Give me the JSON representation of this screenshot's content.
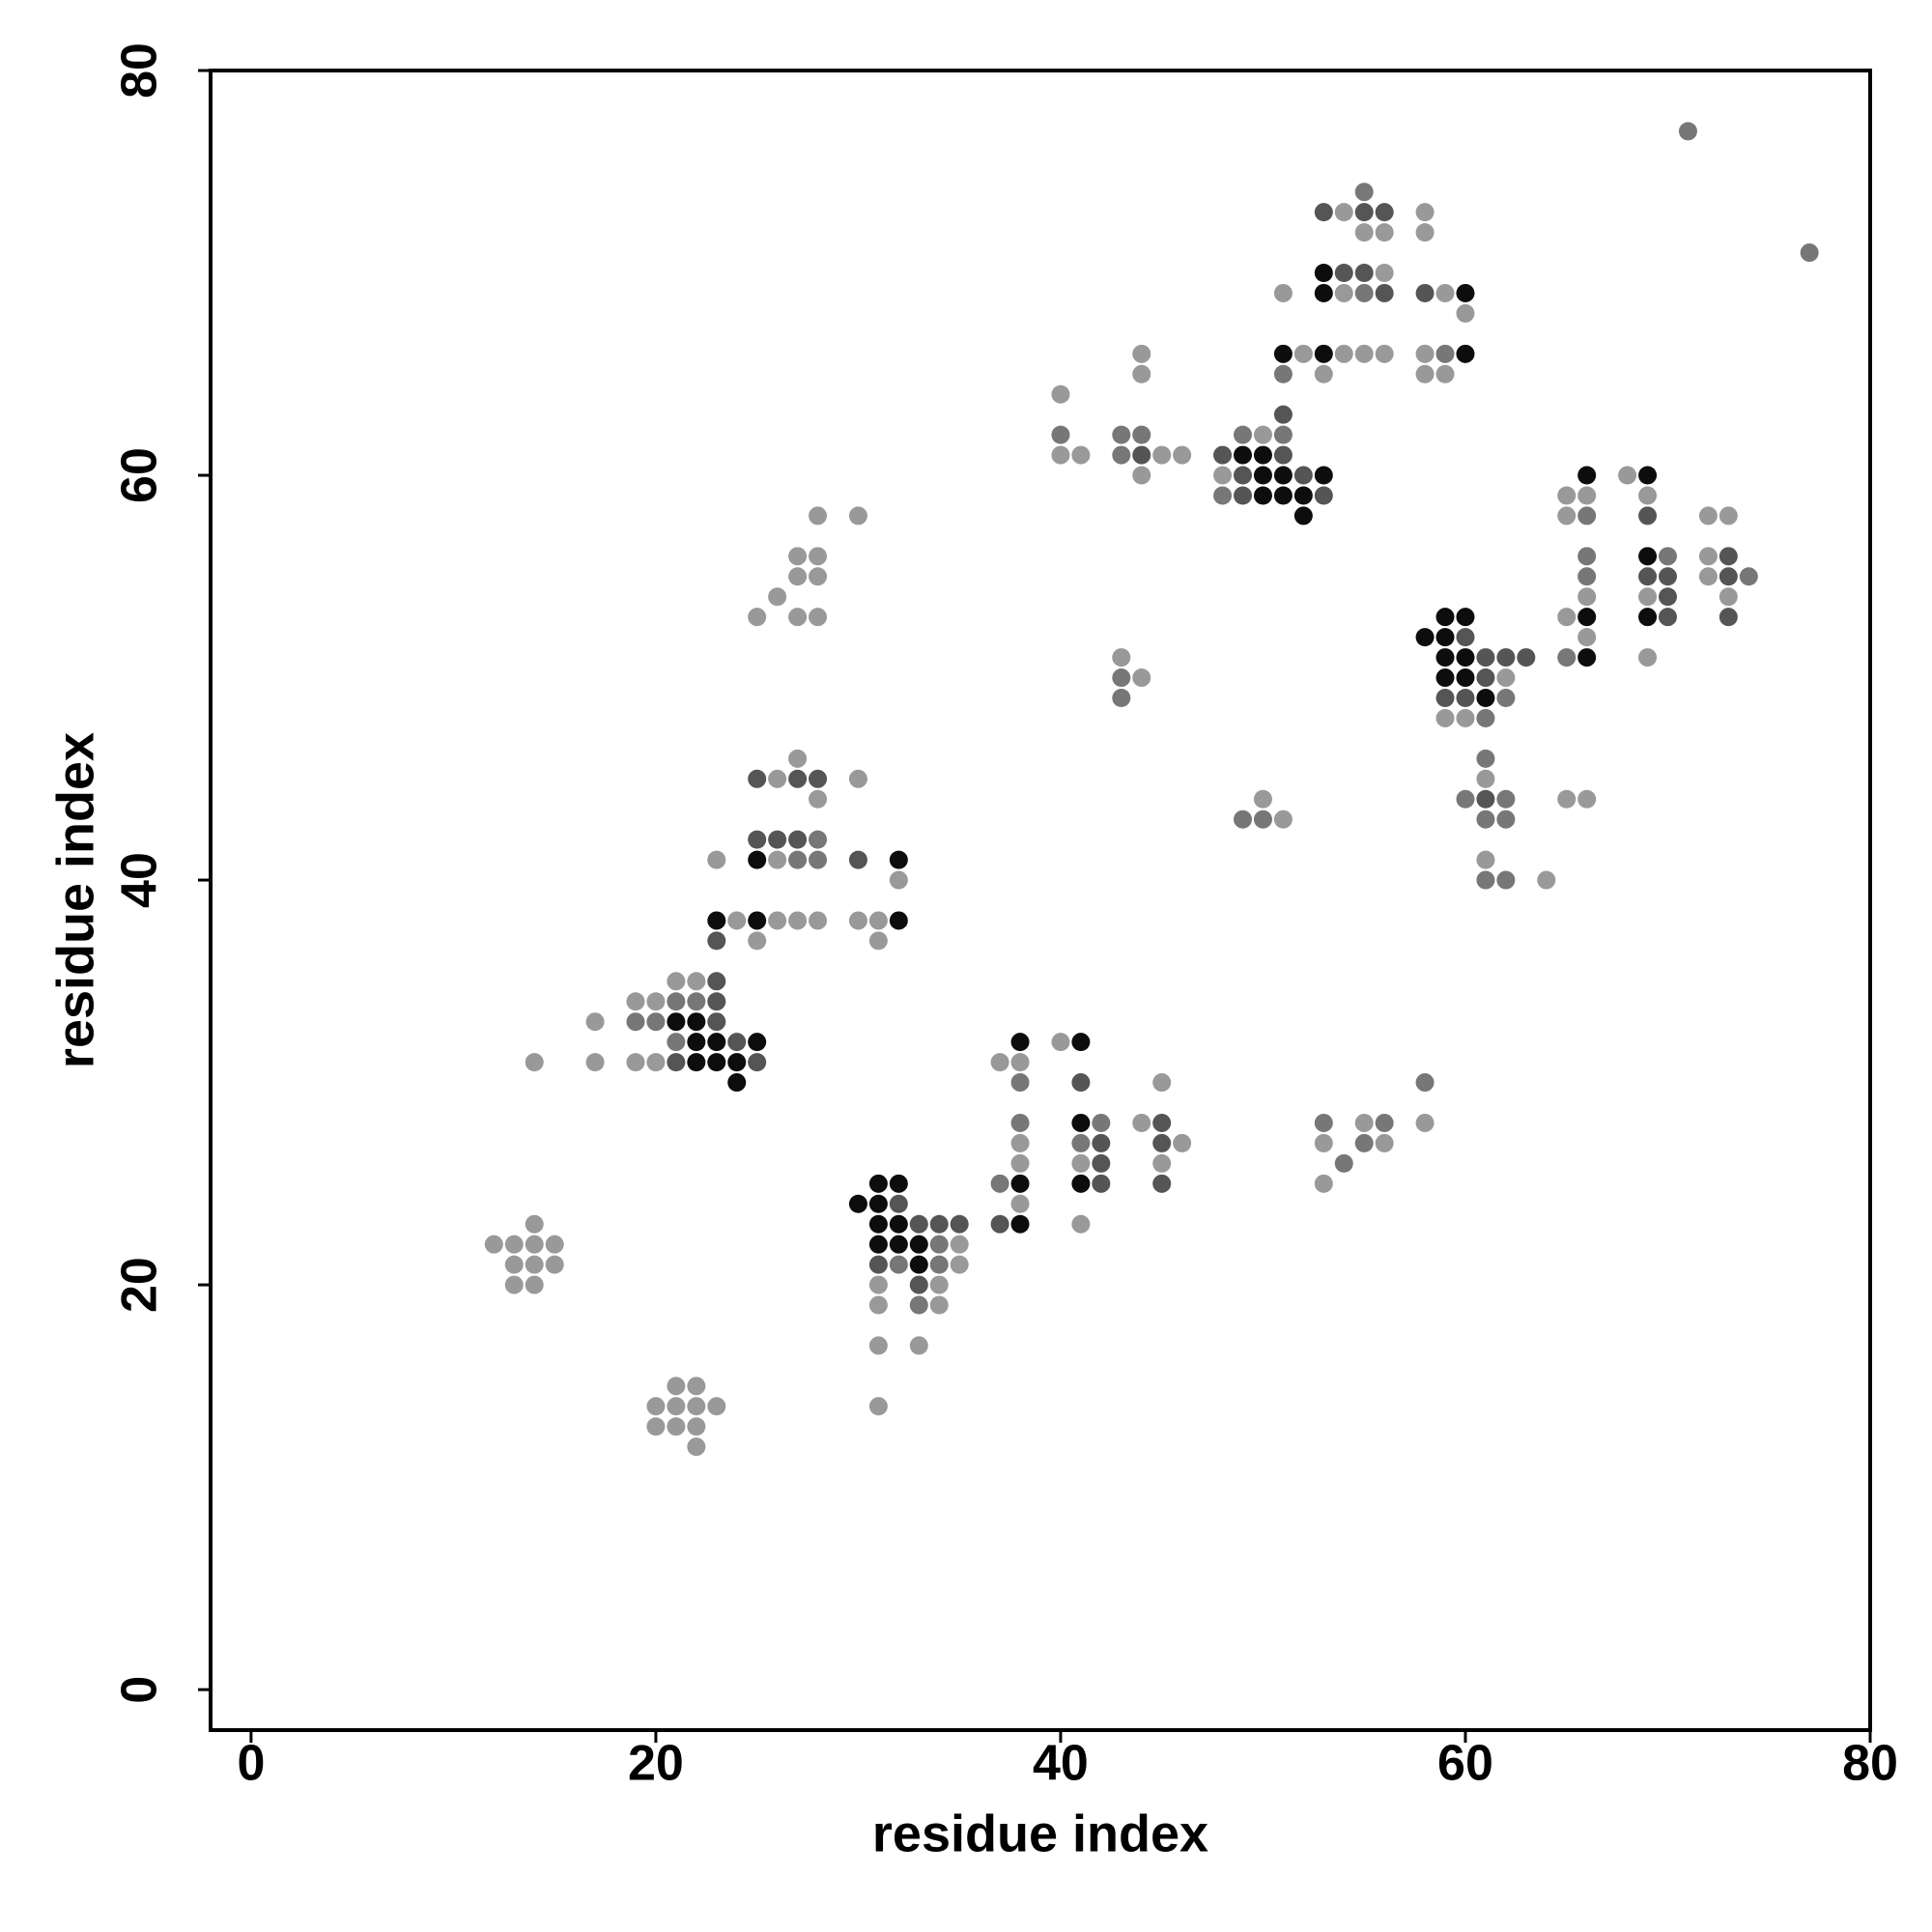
{
  "chart_data": {
    "type": "scatter",
    "xlabel": "residue index",
    "ylabel": "residue index",
    "xlim": [
      -2,
      80
    ],
    "ylim": [
      -2,
      80
    ],
    "xticks": [
      0,
      20,
      40,
      60,
      80
    ],
    "yticks": [
      0,
      20,
      40,
      60,
      80
    ],
    "series": [
      {
        "color": "#999999",
        "x": [
          12,
          13,
          14,
          15,
          14,
          13,
          14,
          15,
          13,
          14,
          14,
          17,
          17,
          21,
          22,
          20,
          21,
          22,
          23,
          20,
          21,
          22,
          22,
          21,
          22,
          19,
          20,
          19,
          20,
          23,
          24,
          26,
          27,
          28,
          25,
          26,
          26,
          27,
          28,
          30,
          32,
          30,
          31,
          31,
          25,
          26,
          27,
          28,
          27,
          28,
          27,
          28,
          28,
          30,
          35,
          35,
          31,
          34,
          31,
          34,
          31,
          33,
          31,
          37,
          38,
          38,
          38,
          38,
          40,
          41,
          41,
          44,
          45,
          46,
          45,
          53,
          53,
          55,
          56,
          58,
          43,
          44,
          50,
          51,
          40,
          40,
          41,
          45,
          46,
          44,
          44,
          44,
          50,
          48,
          51,
          52,
          54,
          55,
          56,
          53,
          56,
          54,
          54,
          55,
          56,
          58,
          58,
          59,
          60,
          58,
          58,
          59,
          62,
          59,
          60,
          61,
          61,
          64,
          65,
          66,
          65,
          66,
          65,
          66,
          65,
          66,
          68,
          69,
          69,
          69,
          72,
          73,
          72,
          72,
          73
        ],
        "values": [
          22,
          22,
          22,
          22,
          23,
          21,
          21,
          21,
          20,
          20,
          31,
          31,
          33,
          15,
          15,
          14,
          14,
          14,
          14,
          13,
          13,
          13,
          12,
          35,
          35,
          34,
          34,
          31,
          31,
          41,
          38,
          38,
          38,
          38,
          37,
          41,
          45,
          46,
          44,
          45,
          40,
          38,
          38,
          37,
          53,
          54,
          53,
          53,
          55,
          55,
          56,
          56,
          58,
          58,
          22,
          21,
          20,
          20,
          19,
          19,
          17,
          17,
          14,
          31,
          31,
          27,
          26,
          24,
          32,
          26,
          23,
          28,
          30,
          27,
          26,
          27,
          25,
          28,
          27,
          28,
          51,
          50,
          44,
          43,
          64,
          61,
          61,
          61,
          61,
          60,
          66,
          65,
          62,
          60,
          69,
          66,
          66,
          66,
          66,
          65,
          70,
          69,
          73,
          72,
          72,
          73,
          72,
          69,
          68,
          66,
          65,
          65,
          50,
          48,
          48,
          45,
          41,
          40,
          44,
          44,
          59,
          59,
          58,
          54,
          53,
          52,
          60,
          59,
          54,
          51,
          58,
          58,
          56,
          55,
          54
        ]
      },
      {
        "color": "#777777",
        "x": [
          21,
          22,
          19,
          20,
          21,
          27,
          28,
          28,
          32,
          34,
          34,
          33,
          38,
          38,
          37,
          42,
          41,
          53,
          54,
          55,
          56,
          58,
          43,
          43,
          49,
          50,
          40,
          43,
          44,
          43,
          49,
          51,
          48,
          51,
          55,
          55,
          59,
          62,
          61,
          61,
          60,
          62,
          61,
          62,
          61,
          62,
          66,
          66,
          66,
          65,
          70,
          74,
          71,
          77
        ],
        "values": [
          34,
          34,
          33,
          33,
          32,
          41,
          41,
          42,
          21,
          22,
          21,
          19,
          30,
          28,
          25,
          28,
          27,
          28,
          26,
          27,
          28,
          30,
          50,
          49,
          43,
          43,
          62,
          62,
          62,
          61,
          62,
          62,
          59,
          65,
          69,
          74,
          66,
          49,
          48,
          46,
          44,
          44,
          43,
          43,
          40,
          40,
          58,
          56,
          55,
          51,
          56,
          55,
          77,
          71
        ]
      },
      {
        "color": "#555555",
        "x": [
          23,
          23,
          23,
          24,
          21,
          25,
          23,
          25,
          26,
          27,
          25,
          27,
          28,
          30,
          32,
          33,
          34,
          35,
          31,
          33,
          37,
          41,
          42,
          42,
          42,
          45,
          45,
          45,
          44,
          51,
          48,
          51,
          49,
          52,
          49,
          53,
          54,
          55,
          56,
          53,
          55,
          56,
          58,
          60,
          61,
          62,
          63,
          61,
          59,
          60,
          61,
          69,
          69,
          70,
          70,
          70,
          73,
          73,
          73
        ],
        "values": [
          35,
          34,
          33,
          32,
          31,
          31,
          37,
          42,
          42,
          42,
          45,
          45,
          45,
          41,
          24,
          23,
          23,
          23,
          21,
          20,
          23,
          30,
          27,
          26,
          25,
          28,
          27,
          25,
          61,
          63,
          61,
          61,
          60,
          60,
          59,
          59,
          70,
          70,
          69,
          73,
          73,
          73,
          69,
          52,
          51,
          51,
          51,
          50,
          49,
          49,
          44,
          58,
          55,
          55,
          54,
          53,
          56,
          55,
          53
        ]
      },
      {
        "color": "#0d0d0d",
        "x": [
          21,
          22,
          22,
          23,
          25,
          22,
          23,
          24,
          24,
          23,
          25,
          25,
          32,
          32,
          31,
          32,
          30,
          31,
          31,
          32,
          31,
          32,
          33,
          33,
          38,
          38,
          38,
          41,
          41,
          41,
          49,
          50,
          50,
          51,
          53,
          50,
          51,
          52,
          52,
          51,
          53,
          53,
          53,
          60,
          60,
          59,
          60,
          58,
          59,
          59,
          60,
          59,
          60,
          61,
          66,
          66,
          66,
          69,
          69,
          69
        ],
        "values": [
          33,
          33,
          32,
          32,
          32,
          31,
          31,
          31,
          30,
          38,
          38,
          41,
          41,
          38,
          25,
          25,
          24,
          24,
          23,
          23,
          22,
          22,
          22,
          21,
          32,
          25,
          23,
          32,
          28,
          25,
          61,
          61,
          60,
          60,
          60,
          59,
          59,
          59,
          58,
          66,
          66,
          70,
          69,
          69,
          66,
          53,
          53,
          52,
          52,
          51,
          51,
          50,
          50,
          49,
          60,
          53,
          51,
          60,
          56,
          53
        ]
      }
    ]
  }
}
